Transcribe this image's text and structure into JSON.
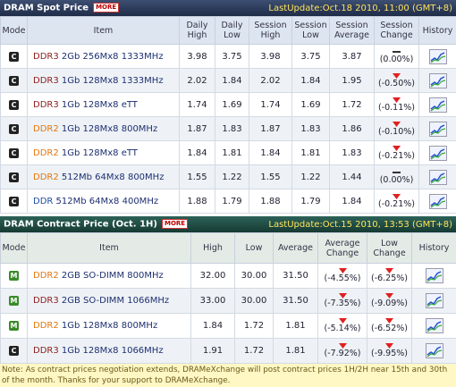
{
  "spot": {
    "title": "DRAM Spot Price",
    "more": "MORE",
    "last_update": "LastUpdate:Oct.18 2010, 11:00 (GMT+8)",
    "columns": [
      "Mode",
      "Item",
      "Daily High",
      "Daily Low",
      "Session High",
      "Session Low",
      "Session Average",
      "Session Change",
      "History"
    ],
    "rows": [
      {
        "mode": "C",
        "type": "DDR3",
        "item": "2Gb 256Mx8 1333MHz",
        "cells": [
          "3.98",
          "3.75",
          "3.98",
          "3.75",
          "3.87"
        ],
        "changes": [
          "(0.00%)"
        ]
      },
      {
        "mode": "C",
        "type": "DDR3",
        "item": "1Gb 128Mx8 1333MHz",
        "cells": [
          "2.02",
          "1.84",
          "2.02",
          "1.84",
          "1.95"
        ],
        "changes": [
          "(-0.50%)"
        ]
      },
      {
        "mode": "C",
        "type": "DDR3",
        "item": "1Gb 128Mx8 eTT",
        "cells": [
          "1.74",
          "1.69",
          "1.74",
          "1.69",
          "1.72"
        ],
        "changes": [
          "(-0.11%)"
        ]
      },
      {
        "mode": "C",
        "type": "DDR2",
        "item": "1Gb 128Mx8 800MHz",
        "cells": [
          "1.87",
          "1.83",
          "1.87",
          "1.83",
          "1.86"
        ],
        "changes": [
          "(-0.10%)"
        ]
      },
      {
        "mode": "C",
        "type": "DDR2",
        "item": "1Gb 128Mx8 eTT",
        "cells": [
          "1.84",
          "1.81",
          "1.84",
          "1.81",
          "1.83"
        ],
        "changes": [
          "(-0.21%)"
        ]
      },
      {
        "mode": "C",
        "type": "DDR2",
        "item": "512Mb 64Mx8 800MHz",
        "cells": [
          "1.55",
          "1.22",
          "1.55",
          "1.22",
          "1.44"
        ],
        "changes": [
          "(0.00%)"
        ]
      },
      {
        "mode": "C",
        "type": "DDR",
        "item": "512Mb 64Mx8 400MHz",
        "cells": [
          "1.88",
          "1.79",
          "1.88",
          "1.79",
          "1.84"
        ],
        "changes": [
          "(-0.21%)"
        ]
      }
    ]
  },
  "contract": {
    "title": "DRAM Contract Price (Oct. 1H)",
    "more": "MORE",
    "last_update": "LastUpdate:Oct.15 2010, 13:53 (GMT+8)",
    "columns": [
      "Mode",
      "Item",
      "High",
      "Low",
      "Average",
      "Average Change",
      "Low Change",
      "History"
    ],
    "rows": [
      {
        "mode": "M",
        "type": "DDR2",
        "item": "2GB SO-DIMM 800MHz",
        "cells": [
          "32.00",
          "30.00",
          "31.50"
        ],
        "changes": [
          "(-4.55%)",
          "(-6.25%)"
        ]
      },
      {
        "mode": "M",
        "type": "DDR3",
        "item": "2GB SO-DIMM 1066MHz",
        "cells": [
          "33.00",
          "30.00",
          "31.50"
        ],
        "changes": [
          "(-7.35%)",
          "(-9.09%)"
        ]
      },
      {
        "mode": "M",
        "type": "DDR2",
        "item": "1Gb 128Mx8 800MHz",
        "cells": [
          "1.84",
          "1.72",
          "1.81"
        ],
        "changes": [
          "(-5.14%)",
          "(-6.52%)"
        ]
      },
      {
        "mode": "C",
        "type": "DDR3",
        "item": "1Gb 128Mx8 1066MHz",
        "cells": [
          "1.91",
          "1.72",
          "1.81"
        ],
        "changes": [
          "(-7.92%)",
          "(-9.95%)"
        ]
      }
    ]
  },
  "note": "Note: As contract prices negotiation extends, DRAMeXchange will post contract prices 1H/2H near 15th and 30th of the month. Thanks for your support to DRAMeXchange."
}
